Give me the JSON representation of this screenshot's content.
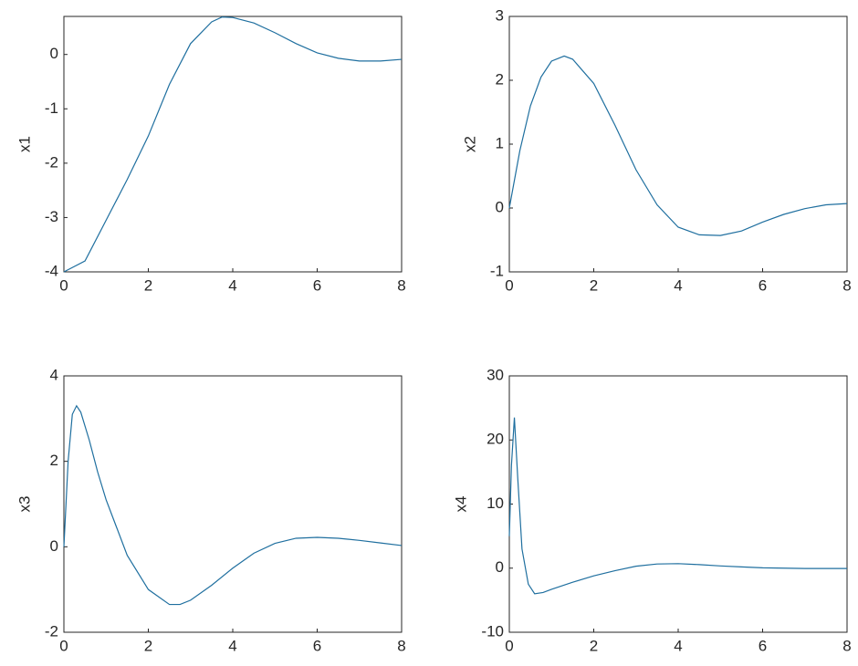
{
  "chart_data": [
    {
      "type": "line",
      "ylabel": "x1",
      "xlim": [
        0,
        8
      ],
      "ylim": [
        -4,
        0.7
      ],
      "xticks": [
        0,
        2,
        4,
        6,
        8
      ],
      "yticks": [
        -4,
        -3,
        -2,
        -1,
        0
      ],
      "color": "#1f6f9f",
      "x": [
        0,
        0.5,
        1,
        1.5,
        2,
        2.5,
        3,
        3.5,
        3.75,
        4,
        4.5,
        5,
        5.5,
        6,
        6.5,
        7,
        7.5,
        8
      ],
      "values": [
        -4,
        -3.8,
        -3.05,
        -2.3,
        -1.5,
        -0.55,
        0.2,
        0.6,
        0.69,
        0.68,
        0.58,
        0.4,
        0.2,
        0.03,
        -0.07,
        -0.12,
        -0.12,
        -0.09
      ]
    },
    {
      "type": "line",
      "ylabel": "x2",
      "xlim": [
        0,
        8
      ],
      "ylim": [
        -1,
        3
      ],
      "xticks": [
        0,
        2,
        4,
        6,
        8
      ],
      "yticks": [
        -1,
        0,
        1,
        2,
        3
      ],
      "color": "#1f6f9f",
      "x": [
        0,
        0.25,
        0.5,
        0.75,
        1,
        1.3,
        1.5,
        2,
        2.5,
        3,
        3.5,
        4,
        4.5,
        5,
        5.5,
        6,
        6.5,
        7,
        7.5,
        8
      ],
      "values": [
        0,
        0.9,
        1.6,
        2.05,
        2.3,
        2.38,
        2.33,
        1.95,
        1.3,
        0.6,
        0.05,
        -0.3,
        -0.42,
        -0.43,
        -0.36,
        -0.22,
        -0.1,
        -0.01,
        0.05,
        0.07
      ]
    },
    {
      "type": "line",
      "ylabel": "x3",
      "xlim": [
        0,
        8
      ],
      "ylim": [
        -2,
        4
      ],
      "xticks": [
        0,
        2,
        4,
        6,
        8
      ],
      "yticks": [
        -2,
        0,
        2,
        4
      ],
      "color": "#1f6f9f",
      "x": [
        0,
        0.1,
        0.2,
        0.3,
        0.4,
        0.6,
        0.8,
        1,
        1.5,
        2,
        2.5,
        2.75,
        3,
        3.5,
        4,
        4.5,
        5,
        5.5,
        6,
        6.5,
        7,
        7.5,
        8
      ],
      "values": [
        0,
        2.0,
        3.1,
        3.3,
        3.15,
        2.5,
        1.75,
        1.1,
        -0.2,
        -1.0,
        -1.35,
        -1.35,
        -1.25,
        -0.9,
        -0.5,
        -0.15,
        0.08,
        0.2,
        0.22,
        0.2,
        0.15,
        0.09,
        0.03
      ]
    },
    {
      "type": "line",
      "ylabel": "x4",
      "xlim": [
        0,
        8
      ],
      "ylim": [
        -10,
        30
      ],
      "xticks": [
        0,
        2,
        4,
        6,
        8
      ],
      "yticks": [
        -10,
        0,
        10,
        20,
        30
      ],
      "color": "#1f6f9f",
      "x": [
        0,
        0.05,
        0.12,
        0.2,
        0.3,
        0.45,
        0.6,
        0.8,
        1,
        1.5,
        2,
        2.5,
        3,
        3.5,
        4,
        4.5,
        5,
        5.5,
        6,
        7,
        8
      ],
      "values": [
        5,
        16,
        23.5,
        14,
        3,
        -2.5,
        -4,
        -3.8,
        -3.3,
        -2.2,
        -1.2,
        -0.4,
        0.3,
        0.65,
        0.7,
        0.55,
        0.35,
        0.2,
        0.05,
        -0.05,
        -0.05
      ]
    }
  ]
}
